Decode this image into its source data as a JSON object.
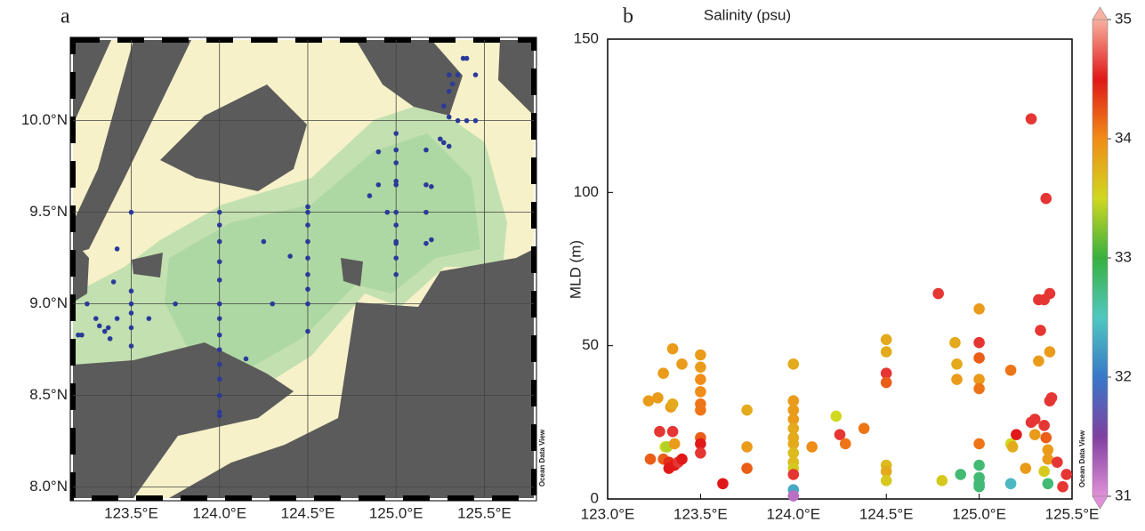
{
  "chart_data": [
    {
      "type": "map",
      "panel_label": "a",
      "watermark": "Ocean Data View",
      "color": "#2b3a9a",
      "xlim": [
        123.17,
        125.78
      ],
      "ylim": [
        7.94,
        10.44
      ],
      "xticks": [
        {
          "value": 123.5,
          "label": "123.5°E"
        },
        {
          "value": 124.0,
          "label": "124.0°E"
        },
        {
          "value": 124.5,
          "label": "124.5°E"
        },
        {
          "value": 125.0,
          "label": "125.0°E"
        },
        {
          "value": 125.5,
          "label": "125.5°E"
        }
      ],
      "yticks": [
        {
          "value": 8.0,
          "label": "8.0°N"
        },
        {
          "value": 8.5,
          "label": "8.5°N"
        },
        {
          "value": 9.0,
          "label": "9.0°N"
        },
        {
          "value": 9.5,
          "label": "9.5°N"
        },
        {
          "value": 10.0,
          "label": "10.0°N"
        }
      ],
      "grid": true,
      "x": [
        124,
        124,
        124,
        124,
        124,
        124,
        124,
        124,
        124,
        124,
        124,
        124,
        124,
        124,
        124.5,
        124.5,
        124.5,
        124.5,
        124.5,
        124.5,
        124.5,
        124.5,
        124.5,
        125,
        125,
        125,
        125,
        125,
        125,
        125,
        125,
        125,
        125,
        125,
        123.5,
        123.5,
        123.5,
        123.5,
        123.5,
        123.5,
        123.25,
        123.3,
        123.32,
        123.35,
        123.37,
        123.38,
        123.42,
        123.42,
        123.4,
        123.2,
        123.22,
        123.6,
        123.75,
        124.15,
        124.25,
        124.3,
        124.4,
        124.85,
        124.9,
        124.9,
        124.95,
        125.17,
        125.17,
        125.2,
        125.17,
        125.17,
        125.2,
        125.25,
        125.27,
        125.3,
        125.35,
        125.4,
        125.45,
        125.3,
        125.3,
        125.32,
        125.35,
        125.3,
        125.38,
        125.4,
        125.45,
        125.27
      ],
      "y": [
        9.5,
        9.43,
        9.34,
        9.23,
        9.13,
        9.0,
        8.92,
        8.83,
        8.75,
        8.67,
        8.59,
        8.5,
        8.41,
        8.39,
        9.53,
        9.5,
        9.43,
        9.34,
        9.25,
        9.16,
        9.08,
        9.0,
        8.85,
        9.93,
        9.84,
        9.77,
        9.67,
        9.65,
        9.5,
        9.43,
        9.34,
        9.33,
        9.25,
        9.16,
        9.5,
        9.07,
        9.0,
        8.95,
        8.87,
        8.77,
        9.0,
        8.92,
        8.88,
        8.85,
        8.87,
        8.81,
        8.92,
        9.3,
        9.12,
        8.83,
        8.83,
        8.92,
        9.0,
        8.7,
        9.34,
        9.0,
        9.26,
        9.59,
        9.83,
        9.65,
        9.5,
        9.84,
        9.65,
        9.64,
        9.5,
        9.33,
        9.35,
        9.9,
        9.88,
        9.86,
        10.0,
        10.0,
        10.0,
        10.02,
        10.16,
        10.2,
        10.25,
        10.25,
        10.34,
        10.34,
        10.25,
        10.08
      ]
    },
    {
      "type": "scatter",
      "panel_label": "b",
      "title": "Salinity (psu)",
      "ylabel": "MLD (m)",
      "watermark": "Ocean Data View",
      "xlim": [
        123.0,
        125.5
      ],
      "ylim": [
        0,
        150
      ],
      "xticks": [
        {
          "value": 123.0,
          "label": "123.0°E"
        },
        {
          "value": 123.5,
          "label": "123.5°E"
        },
        {
          "value": 124.0,
          "label": "124.0°E"
        },
        {
          "value": 124.5,
          "label": "124.5°E"
        },
        {
          "value": 125.0,
          "label": "125.0°E"
        },
        {
          "value": 125.5,
          "label": "125.5°E"
        }
      ],
      "yticks": [
        0,
        50,
        100,
        150
      ],
      "colorbar": {
        "lim": [
          31,
          35
        ],
        "ticks": [
          31,
          32,
          33,
          34,
          35
        ],
        "colors": [
          "#e090d8",
          "#8040a0",
          "#3878c8",
          "#50c8c0",
          "#38b040",
          "#d0d820",
          "#f08c18",
          "#e01818",
          "#f8b0a0"
        ]
      },
      "x": [
        123.22,
        123.23,
        123.27,
        123.28,
        123.3,
        123.3,
        123.31,
        123.32,
        123.33,
        123.33,
        123.35,
        123.34,
        123.35,
        123.35,
        123.36,
        123.36,
        123.38,
        123.4,
        123.4,
        123.5,
        123.5,
        123.5,
        123.5,
        123.5,
        123.5,
        123.5,
        123.5,
        123.5,
        123.62,
        123.75,
        123.75,
        123.75,
        124,
        124,
        124,
        124,
        124,
        124,
        124,
        124,
        124,
        124,
        124,
        124,
        124,
        124.1,
        124.23,
        124.25,
        124.28,
        124.38,
        124.5,
        124.5,
        124.5,
        124.5,
        124.5,
        124.5,
        124.5,
        124.78,
        124.8,
        124.87,
        124.88,
        124.88,
        124.9,
        125,
        125,
        125,
        125,
        125,
        125,
        125,
        125,
        125,
        125,
        125.17,
        125.17,
        125.18,
        125.17,
        125.2,
        125.25,
        125.28,
        125.3,
        125.28,
        125.32,
        125.32,
        125.3,
        125.33,
        125.35,
        125.36,
        125.38,
        125.35,
        125.36,
        125.37,
        125.37,
        125.35,
        125.37,
        125.38,
        125.39,
        125.38,
        125.42,
        125.45,
        125.47
      ],
      "values": [
        32,
        13,
        33,
        22,
        13,
        41,
        17,
        17,
        12,
        10,
        49,
        30,
        31,
        22,
        18,
        11,
        12,
        13,
        44,
        47,
        43,
        39,
        35,
        31,
        29,
        20,
        18,
        15,
        5,
        29,
        17,
        10,
        44,
        32,
        29,
        26,
        23,
        20,
        18,
        15,
        12,
        10,
        8,
        3,
        1,
        17,
        27,
        21,
        18,
        23,
        52,
        48,
        41,
        38,
        11,
        9,
        6,
        67,
        6,
        51,
        44,
        39,
        8,
        62,
        51,
        46,
        39,
        36,
        18,
        11,
        7,
        5,
        4,
        42,
        18,
        17,
        5,
        21,
        10,
        124,
        26,
        25,
        65,
        45,
        21,
        55,
        65,
        98,
        67,
        24,
        20,
        16,
        13,
        9,
        5,
        32,
        33,
        48,
        12,
        4,
        8
      ],
      "salinity": [
        33.9,
        34.2,
        33.9,
        34.6,
        34.2,
        33.9,
        33.5,
        33.4,
        34.4,
        34.5,
        33.9,
        33.9,
        33.8,
        34.6,
        33.9,
        34.5,
        34.6,
        34.5,
        33.9,
        33.9,
        33.9,
        34.0,
        34.0,
        34.1,
        34.1,
        34.2,
        34.5,
        34.6,
        34.5,
        33.8,
        33.9,
        34.2,
        33.8,
        33.9,
        33.9,
        33.9,
        33.8,
        33.8,
        33.8,
        33.7,
        33.7,
        33.6,
        34.6,
        32.3,
        31.2,
        34.0,
        33.5,
        34.6,
        34.1,
        34.1,
        33.8,
        33.8,
        34.6,
        34.2,
        33.7,
        33.8,
        33.6,
        34.6,
        33.6,
        33.8,
        33.8,
        33.9,
        32.8,
        33.9,
        34.6,
        34.2,
        33.9,
        34.1,
        34.1,
        32.8,
        32.8,
        32.8,
        32.8,
        34.1,
        33.5,
        33.8,
        32.4,
        34.5,
        33.9,
        34.6,
        34.6,
        34.6,
        34.6,
        33.9,
        33.9,
        34.6,
        34.6,
        34.6,
        34.6,
        34.6,
        34.2,
        33.9,
        33.9,
        33.6,
        32.8,
        34.6,
        34.6,
        33.9,
        34.6,
        34.6,
        34.6
      ]
    }
  ]
}
